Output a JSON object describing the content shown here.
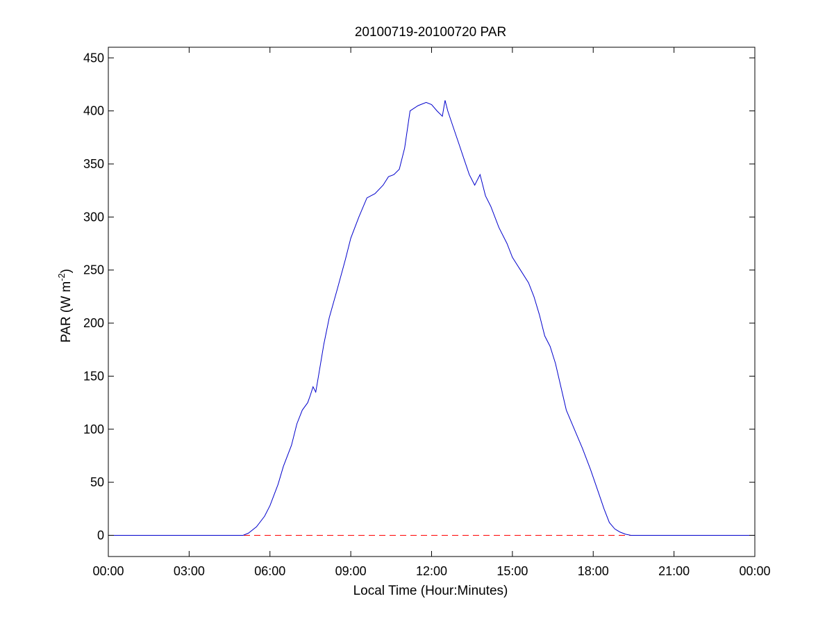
{
  "chart_data": {
    "type": "line",
    "title": "20100719-20100720 PAR",
    "xlabel": "Local Time (Hour:Minutes)",
    "ylabel": {
      "base": "PAR (W m",
      "sup": "-2",
      "end": ")"
    },
    "xlim": [
      0,
      24
    ],
    "ylim": [
      -20,
      460
    ],
    "x_ticks": [
      {
        "value": 0,
        "label": "00:00"
      },
      {
        "value": 3,
        "label": "03:00"
      },
      {
        "value": 6,
        "label": "06:00"
      },
      {
        "value": 9,
        "label": "09:00"
      },
      {
        "value": 12,
        "label": "12:00"
      },
      {
        "value": 15,
        "label": "15:00"
      },
      {
        "value": 18,
        "label": "18:00"
      },
      {
        "value": 21,
        "label": "21:00"
      },
      {
        "value": 24,
        "label": "00:00"
      }
    ],
    "y_ticks": [
      {
        "value": 0,
        "label": "0"
      },
      {
        "value": 50,
        "label": "50"
      },
      {
        "value": 100,
        "label": "100"
      },
      {
        "value": 150,
        "label": "150"
      },
      {
        "value": 200,
        "label": "200"
      },
      {
        "value": 250,
        "label": "250"
      },
      {
        "value": 300,
        "label": "300"
      },
      {
        "value": 350,
        "label": "350"
      },
      {
        "value": 400,
        "label": "400"
      },
      {
        "value": 450,
        "label": "450"
      }
    ],
    "grid": false,
    "reference_line": {
      "y": 0,
      "color": "#ff0000",
      "style": "dashed"
    },
    "series": [
      {
        "color": "#0000cc",
        "x": [
          0,
          5.0,
          5.2,
          5.5,
          5.8,
          6.0,
          6.3,
          6.5,
          6.8,
          7.0,
          7.2,
          7.4,
          7.5,
          7.6,
          7.7,
          7.8,
          8.0,
          8.2,
          8.5,
          8.8,
          9.0,
          9.3,
          9.6,
          9.9,
          10.2,
          10.4,
          10.6,
          10.8,
          11.0,
          11.2,
          11.5,
          11.8,
          12.0,
          12.2,
          12.4,
          12.5,
          12.6,
          12.8,
          13.0,
          13.2,
          13.4,
          13.6,
          13.8,
          14.0,
          14.2,
          14.5,
          14.8,
          15.0,
          15.3,
          15.6,
          15.8,
          16.0,
          16.2,
          16.4,
          16.6,
          16.8,
          17.0,
          17.3,
          17.6,
          17.9,
          18.2,
          18.4,
          18.6,
          18.8,
          19.0,
          19.2,
          19.4,
          19.6,
          24
        ],
        "y": [
          0,
          0,
          2,
          8,
          18,
          28,
          48,
          65,
          85,
          105,
          118,
          125,
          132,
          140,
          135,
          150,
          180,
          205,
          232,
          260,
          280,
          300,
          318,
          322,
          330,
          338,
          340,
          345,
          365,
          400,
          405,
          408,
          406,
          400,
          395,
          410,
          400,
          385,
          370,
          355,
          340,
          330,
          340,
          320,
          310,
          290,
          275,
          262,
          250,
          238,
          225,
          208,
          188,
          178,
          162,
          140,
          118,
          100,
          82,
          62,
          40,
          25,
          12,
          6,
          3,
          1,
          0,
          0,
          0
        ]
      }
    ]
  }
}
